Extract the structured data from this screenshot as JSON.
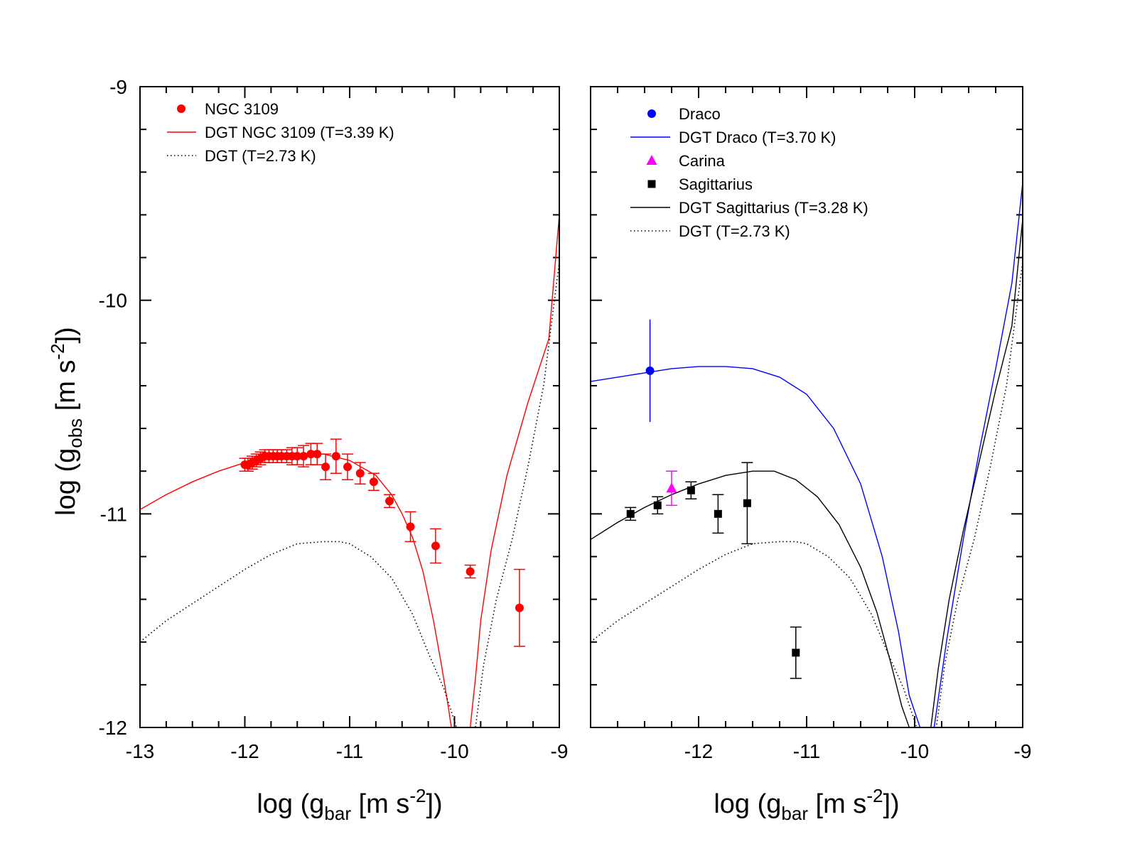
{
  "chart_data": [
    {
      "type": "scatter",
      "panel": "left",
      "xlabel": {
        "prefix": "log (g",
        "sub": "bar",
        "mid": " [m s",
        "sup": "-2",
        "suffix": "])"
      },
      "ylabel": {
        "prefix": "log (g",
        "sub": "obs",
        "mid": " [m s",
        "sup": "-2",
        "suffix": "])"
      },
      "xlim": [
        -13,
        -9
      ],
      "ylim": [
        -12,
        -9
      ],
      "xticks": [
        -13,
        -12,
        -11,
        -10,
        -9
      ],
      "xtick_labels": [
        "-13",
        "-12",
        "-11",
        "-10",
        "-9"
      ],
      "yticks": [
        -12,
        -11,
        -10,
        -9
      ],
      "ytick_labels": [
        "-12",
        "-11",
        "-10",
        "-9"
      ],
      "legend_position": "top-left",
      "series": [
        {
          "name": "NGC 3109",
          "kind": "points",
          "marker": "circle",
          "color": "#ff0000",
          "x": [
            -12.0,
            -11.97,
            -11.93,
            -11.89,
            -11.85,
            -11.81,
            -11.77,
            -11.73,
            -11.69,
            -11.65,
            -11.6,
            -11.55,
            -11.5,
            -11.44,
            -11.37,
            -11.31,
            -11.23,
            -11.13,
            -11.02,
            -10.9,
            -10.77,
            -10.62,
            -10.42,
            -10.18,
            -9.85,
            -9.38
          ],
          "y": [
            -10.77,
            -10.77,
            -10.76,
            -10.75,
            -10.74,
            -10.73,
            -10.73,
            -10.73,
            -10.73,
            -10.73,
            -10.73,
            -10.73,
            -10.73,
            -10.73,
            -10.72,
            -10.72,
            -10.78,
            -10.73,
            -10.78,
            -10.81,
            -10.85,
            -10.94,
            -11.06,
            -11.15,
            -11.27,
            -11.44
          ],
          "yerr": [
            0.03,
            0.03,
            0.03,
            0.03,
            0.03,
            0.03,
            0.03,
            0.03,
            0.03,
            0.03,
            0.03,
            0.04,
            0.04,
            0.05,
            0.05,
            0.05,
            0.06,
            0.08,
            0.06,
            0.05,
            0.04,
            0.03,
            0.07,
            0.08,
            0.03,
            0.18
          ]
        },
        {
          "name": "DGT NGC 3109 (T=3.39 K)",
          "kind": "line",
          "style": "solid",
          "color": "#ff0000",
          "x": [
            -13.0,
            -12.75,
            -12.5,
            -12.25,
            -12.0,
            -11.75,
            -11.5,
            -11.25,
            -11.0,
            -10.75,
            -10.6,
            -10.5,
            -10.4,
            -10.3,
            -10.2,
            -10.12,
            -10.06,
            -10.03,
            -9.85,
            -9.8,
            -9.75,
            -9.65,
            -9.5,
            -9.3,
            -9.1,
            -9.0
          ],
          "y": [
            -10.98,
            -10.91,
            -10.85,
            -10.8,
            -10.76,
            -10.73,
            -10.72,
            -10.72,
            -10.75,
            -10.82,
            -10.91,
            -11.0,
            -11.11,
            -11.27,
            -11.5,
            -11.72,
            -11.9,
            -12.0,
            -12.0,
            -11.77,
            -11.5,
            -11.17,
            -10.82,
            -10.48,
            -10.18,
            -9.6
          ]
        },
        {
          "name": "DGT  (T=2.73 K)",
          "kind": "line",
          "style": "dotted",
          "color": "#000000",
          "x": [
            -13.0,
            -12.75,
            -12.5,
            -12.25,
            -12.0,
            -11.75,
            -11.5,
            -11.25,
            -11.1,
            -11.0,
            -10.8,
            -10.6,
            -10.4,
            -10.25,
            -10.1,
            -9.98,
            -9.88,
            -9.8,
            -9.72,
            -9.6,
            -9.45,
            -9.3,
            -9.15,
            -9.0
          ],
          "y": [
            -11.6,
            -11.5,
            -11.42,
            -11.34,
            -11.26,
            -11.19,
            -11.14,
            -11.13,
            -11.13,
            -11.14,
            -11.2,
            -11.3,
            -11.47,
            -11.65,
            -11.82,
            -12.0,
            -12.0,
            -12.0,
            -11.7,
            -11.4,
            -11.12,
            -10.78,
            -10.4,
            -9.82
          ]
        }
      ]
    },
    {
      "type": "scatter",
      "panel": "right",
      "xlabel": {
        "prefix": "log (g",
        "sub": "bar",
        "mid": " [m s",
        "sup": "-2",
        "suffix": "])"
      },
      "xlim": [
        -13,
        -9
      ],
      "ylim": [
        -12,
        -9
      ],
      "xticks": [
        -13,
        -12,
        -11,
        -10,
        -9
      ],
      "xtick_labels": [
        "",
        "-12",
        "-11",
        "-10",
        "-9"
      ],
      "yticks": [
        -12,
        -11,
        -10,
        -9
      ],
      "legend_position": "top-left",
      "series": [
        {
          "name": "Draco",
          "kind": "points",
          "marker": "circle",
          "color": "#0000ff",
          "x": [
            -12.45
          ],
          "y": [
            -10.33
          ],
          "yerr": [
            0.24
          ],
          "xerr": [
            0
          ]
        },
        {
          "name": "DGT Draco (T=3.70 K)",
          "kind": "line",
          "style": "solid",
          "color": "#0000ff",
          "x": [
            -13.0,
            -12.75,
            -12.5,
            -12.25,
            -12.0,
            -11.75,
            -11.5,
            -11.25,
            -11.0,
            -10.75,
            -10.5,
            -10.3,
            -10.15,
            -10.05,
            -9.95,
            -9.82,
            -9.7,
            -9.55,
            -9.4,
            -9.25,
            -9.1,
            -9.0
          ],
          "y": [
            -10.38,
            -10.36,
            -10.34,
            -10.32,
            -10.31,
            -10.31,
            -10.32,
            -10.36,
            -10.44,
            -10.6,
            -10.86,
            -11.2,
            -11.55,
            -11.85,
            -12.0,
            -12.0,
            -11.58,
            -11.12,
            -10.7,
            -10.32,
            -9.92,
            -9.45
          ]
        },
        {
          "name": "Carina",
          "kind": "points",
          "marker": "triangle",
          "color": "#ff00ff",
          "x": [
            -12.25
          ],
          "y": [
            -10.88
          ],
          "yerr": [
            0.08
          ]
        },
        {
          "name": "Sagittarius",
          "kind": "points",
          "marker": "square",
          "color": "#000000",
          "x": [
            -12.63,
            -12.38,
            -12.07,
            -11.82,
            -11.55,
            -11.1
          ],
          "y": [
            -11.0,
            -10.96,
            -10.89,
            -11.0,
            -10.95,
            -11.65
          ],
          "yerr": [
            0.03,
            0.04,
            0.04,
            0.09,
            0.19,
            0.12
          ]
        },
        {
          "name": "DGT Sagittarius (T=3.28 K)",
          "kind": "line",
          "style": "solid",
          "color": "#000000",
          "x": [
            -13.0,
            -12.75,
            -12.5,
            -12.25,
            -12.0,
            -11.75,
            -11.5,
            -11.3,
            -11.1,
            -10.9,
            -10.7,
            -10.5,
            -10.35,
            -10.22,
            -10.12,
            -10.05,
            -9.85,
            -9.78,
            -9.68,
            -9.55,
            -9.4,
            -9.25,
            -9.1,
            -9.0
          ],
          "y": [
            -11.12,
            -11.04,
            -10.97,
            -10.91,
            -10.86,
            -10.82,
            -10.8,
            -10.8,
            -10.84,
            -10.92,
            -11.05,
            -11.25,
            -11.46,
            -11.7,
            -11.9,
            -12.0,
            -12.0,
            -11.72,
            -11.4,
            -11.08,
            -10.75,
            -10.42,
            -10.12,
            -9.62
          ]
        },
        {
          "name": "DGT (T=2.73 K)",
          "kind": "line",
          "style": "dotted",
          "color": "#000000",
          "x": [
            -13.0,
            -12.75,
            -12.5,
            -12.25,
            -12.0,
            -11.75,
            -11.5,
            -11.25,
            -11.1,
            -11.0,
            -10.8,
            -10.6,
            -10.4,
            -10.25,
            -10.1,
            -9.98,
            -9.88,
            -9.8,
            -9.72,
            -9.6,
            -9.45,
            -9.3,
            -9.15,
            -9.0
          ],
          "y": [
            -11.6,
            -11.5,
            -11.42,
            -11.34,
            -11.26,
            -11.19,
            -11.14,
            -11.13,
            -11.13,
            -11.14,
            -11.2,
            -11.3,
            -11.47,
            -11.65,
            -11.82,
            -12.0,
            -12.0,
            -12.0,
            -11.7,
            -11.4,
            -11.12,
            -10.78,
            -10.4,
            -9.82
          ]
        }
      ]
    }
  ]
}
